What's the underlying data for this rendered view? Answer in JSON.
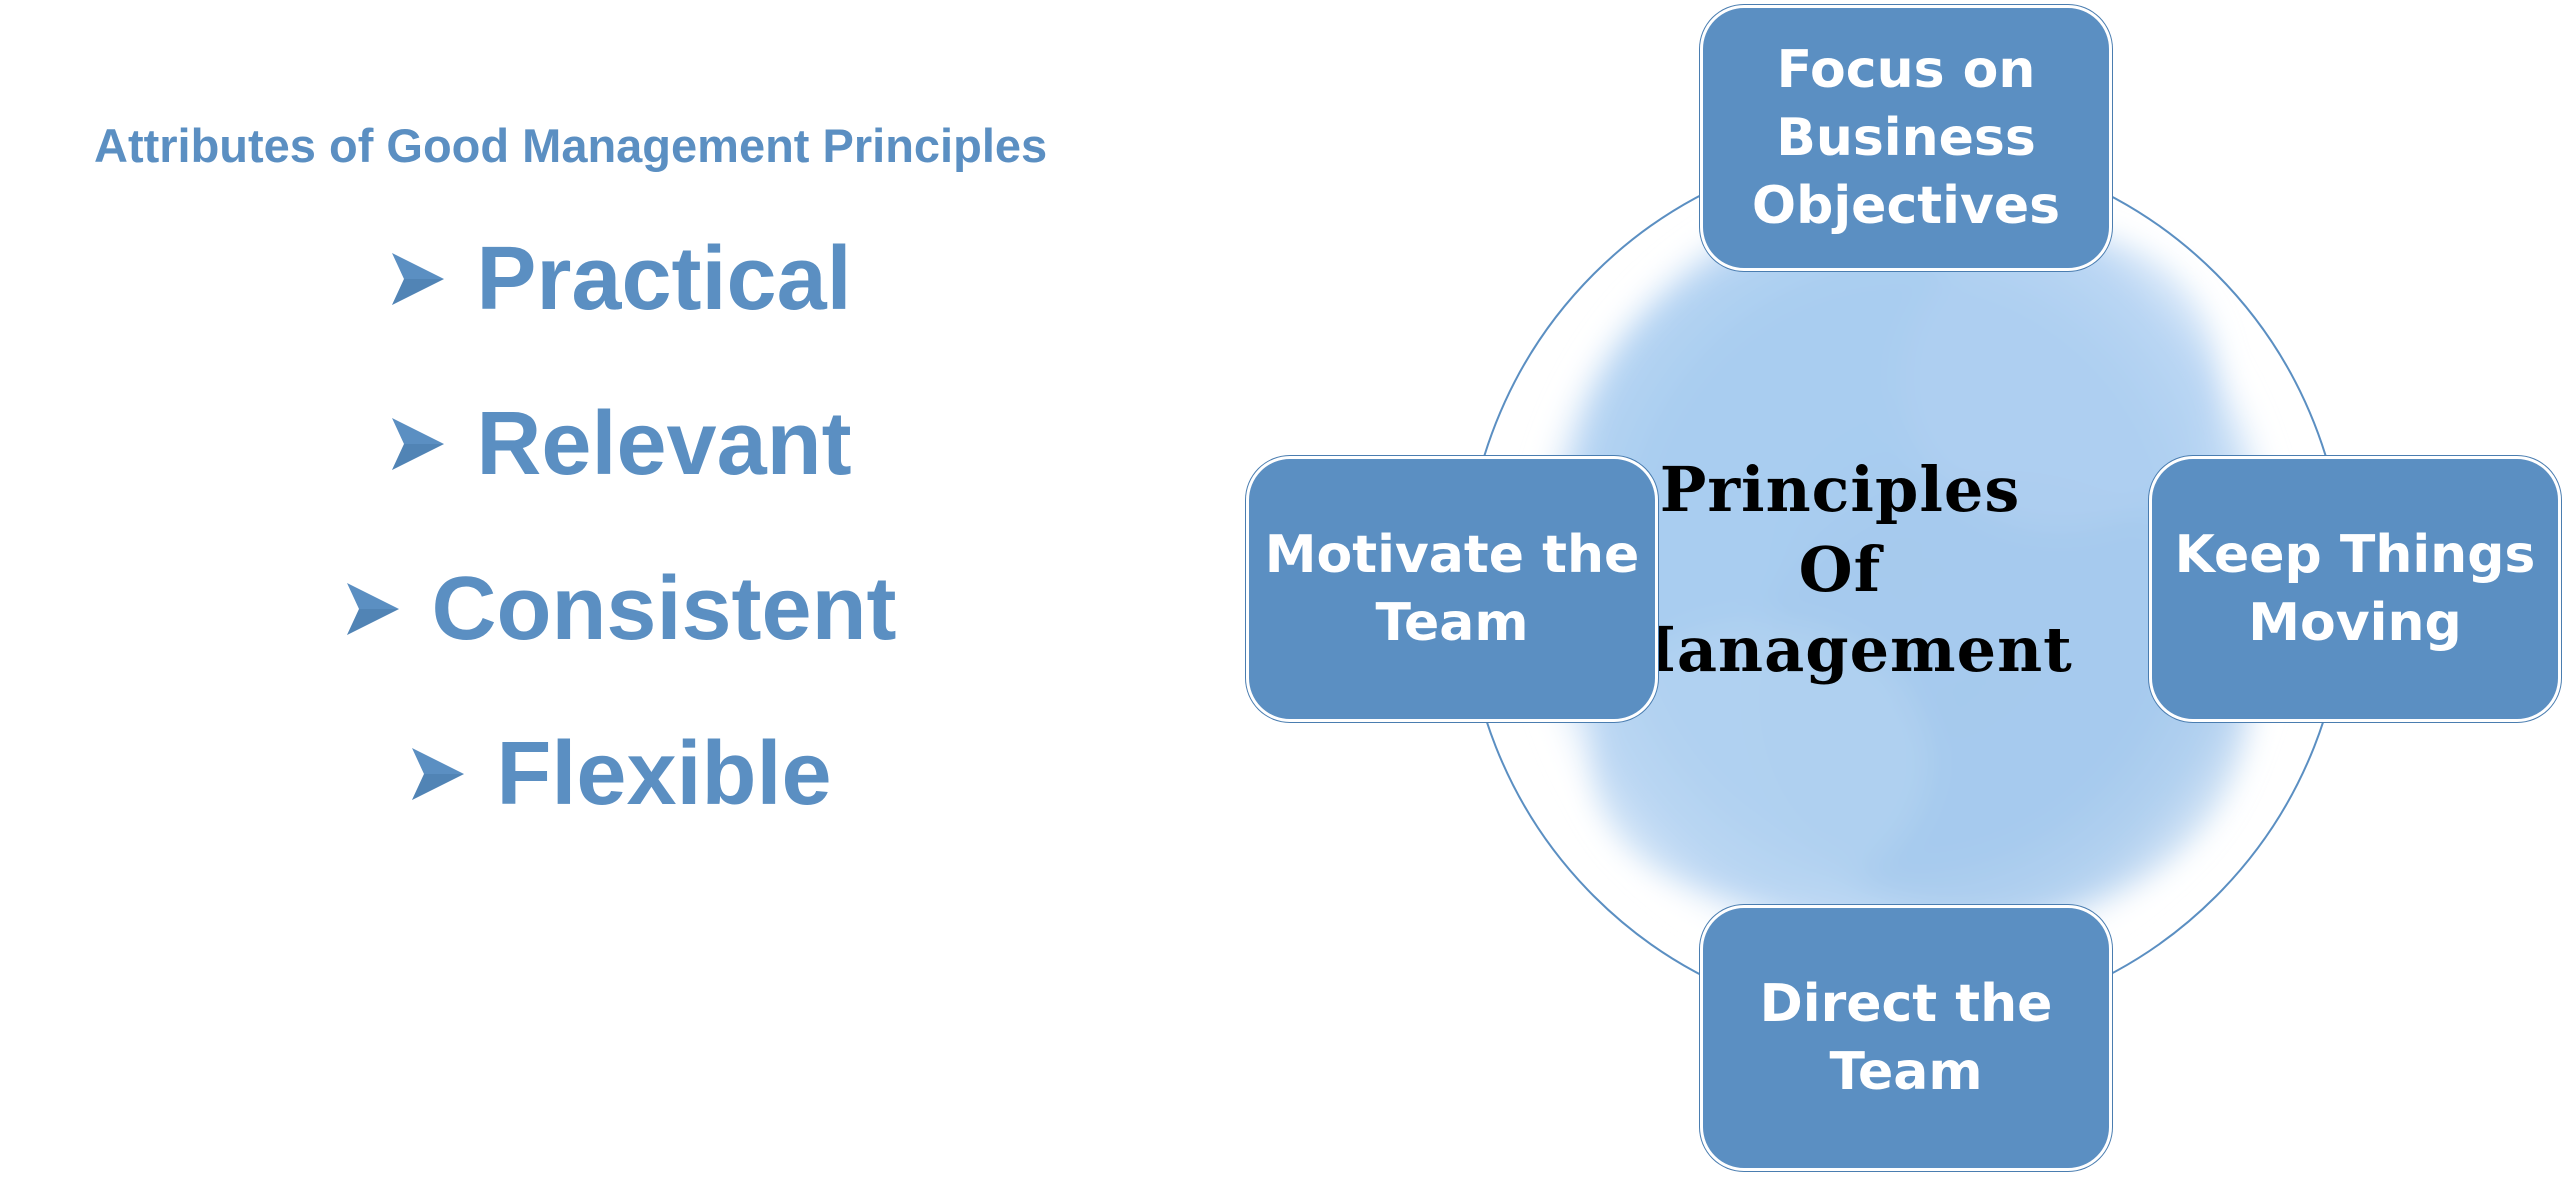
{
  "subtitle": "Attributes of Good Management Principles",
  "attributes": [
    {
      "label": "Practical"
    },
    {
      "label": "Relevant"
    },
    {
      "label": "Consistent"
    },
    {
      "label": "Flexible"
    }
  ],
  "diagram": {
    "center": {
      "line1": "Principles",
      "line2": "Of",
      "line3": "Management"
    },
    "boxes": {
      "top": "Focus on Business Objectives",
      "left": "Motivate the Team",
      "right": "Keep Things Moving",
      "bottom": "Direct the Team"
    }
  },
  "colors": {
    "accent": "#5b8fc2",
    "circle_fill": "#a9cdf0",
    "circle_line": "#5b8fc2",
    "box_border": "#ffffff"
  },
  "icons": {
    "bullet": "arrowhead-bullet-icon"
  }
}
